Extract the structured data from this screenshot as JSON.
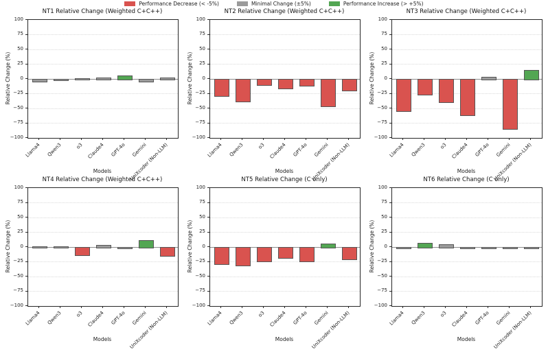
{
  "figure": {
    "background": "#ffffff",
    "palette": {
      "decrease": "#d9534f",
      "minimal": "#9b9b9b",
      "increase": "#53a653",
      "bar_edge": "#555555",
      "zero_line": "#8c8c8c",
      "grid_line": "#d9d9d9",
      "spine": "#262626"
    },
    "thresholds": {
      "decrease_below": -5,
      "increase_above": 5
    },
    "legend": [
      {
        "key": "decrease",
        "label": "Performance Decrease (< -5%)"
      },
      {
        "key": "minimal",
        "label": "Minimal Change (±5%)"
      },
      {
        "key": "increase",
        "label": "Performance Increase (> +5%)"
      }
    ],
    "yticks": [
      100,
      75,
      50,
      25,
      0,
      -25,
      -50,
      -75,
      -100
    ]
  },
  "chart_data": [
    {
      "type": "bar",
      "title": "NT1 Relative Change (Weighted C+C++)",
      "xlabel": "Models",
      "ylabel": "Relative Change (%)",
      "ylim": [
        -100,
        100
      ],
      "grid": true,
      "categories": [
        "Llama4",
        "Qwen3",
        "o3",
        "Claude4",
        "GPT-4o",
        "Gemini",
        "UniXcoder (Non-LLM)"
      ],
      "values": [
        -4,
        -1,
        1,
        2,
        6,
        -4,
        2
      ]
    },
    {
      "type": "bar",
      "title": "NT2 Relative Change (Weighted C+C++)",
      "xlabel": "Models",
      "ylabel": "Relative Change (%)",
      "ylim": [
        -100,
        100
      ],
      "grid": true,
      "categories": [
        "Llama4",
        "Qwen3",
        "o3",
        "Claude4",
        "GPT-4o",
        "Gemini",
        "UniXcoder (Non-LLM)"
      ],
      "values": [
        -28,
        -37,
        -9,
        -15,
        -11,
        -45,
        -19
      ]
    },
    {
      "type": "bar",
      "title": "NT3 Relative Change (Weighted C+C++)",
      "xlabel": "Models",
      "ylabel": "Relative Change (%)",
      "ylim": [
        -100,
        100
      ],
      "grid": true,
      "categories": [
        "Llama4",
        "Qwen3",
        "o3",
        "Claude4",
        "GPT-4o",
        "Gemini",
        "UniXcoder (Non-LLM)"
      ],
      "values": [
        -54,
        -25,
        -38,
        -61,
        3,
        -84,
        15
      ]
    },
    {
      "type": "bar",
      "title": "NT4 Relative Change (Weighted C+C++)",
      "xlabel": "Models",
      "ylabel": "Relative Change (%)",
      "ylim": [
        -100,
        100
      ],
      "grid": true,
      "categories": [
        "Llama4",
        "Qwen3",
        "o3",
        "Claude4",
        "GPT-4o",
        "Gemini",
        "UniXcoder (Non-LLM)"
      ],
      "values": [
        1,
        1,
        -13,
        3.5,
        -1,
        12,
        -14
      ]
    },
    {
      "type": "bar",
      "title": "NT5 Relative Change (C only)",
      "xlabel": "Models",
      "ylabel": "Relative Change (%)",
      "ylim": [
        -100,
        100
      ],
      "grid": true,
      "categories": [
        "Llama4",
        "Qwen3",
        "o3",
        "Claude4",
        "GPT-4o",
        "Gemini",
        "UniXcoder (Non-LLM)"
      ],
      "values": [
        -28,
        -30,
        -23,
        -18,
        -23,
        6,
        -20
      ]
    },
    {
      "type": "bar",
      "title": "NT6 Relative Change (C only)",
      "xlabel": "Models",
      "ylabel": "Relative Change (%)",
      "ylim": [
        -100,
        100
      ],
      "grid": true,
      "categories": [
        "Llama4",
        "Qwen3",
        "o3",
        "Claude4",
        "GPT-4o",
        "Gemini",
        "UniXcoder (Non-LLM)"
      ],
      "values": [
        -0.5,
        7,
        5,
        -0.5,
        -1.5,
        -0.5,
        -0.5
      ]
    }
  ]
}
